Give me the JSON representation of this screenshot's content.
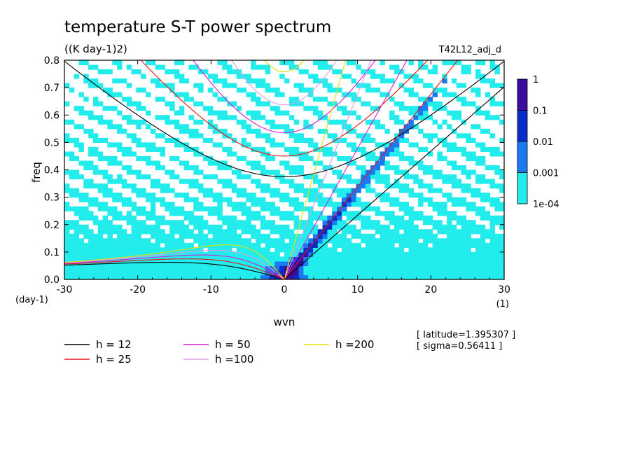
{
  "chart_data": {
    "type": "heatmap",
    "title": "temperature S-T power spectrum",
    "subtitle": "((K day-1)2)",
    "run_label": "T42L12_adj_d",
    "xlabel": "wvn",
    "ylabel": "freq",
    "x_unit": "(1)",
    "y_unit": "(day-1)",
    "xlim": [
      -30,
      30
    ],
    "ylim": [
      0,
      0.8
    ],
    "xticks": [
      -30,
      -20,
      -10,
      0,
      10,
      20,
      30
    ],
    "yticks": [
      0.0,
      0.1,
      0.2,
      0.3,
      0.4,
      0.5,
      0.6,
      0.7,
      0.8
    ],
    "xtick_labels": [
      "-30",
      "-20",
      "-10",
      "0",
      "10",
      "20",
      "30"
    ],
    "ytick_labels": [
      "0.0",
      "0.1",
      "0.2",
      "0.3",
      "0.4",
      "0.5",
      "0.6",
      "0.7",
      "0.8"
    ],
    "colorbar": {
      "levels": [
        0.0001,
        0.001,
        0.01,
        0.1,
        1
      ],
      "labels": [
        "1e-04",
        "0.001",
        "0.01",
        "0.1",
        "1"
      ],
      "colors": [
        "#22ECEC",
        "#1A78F0",
        "#0A2CC8",
        "#3A0CA0"
      ]
    },
    "legend": [
      {
        "label": "h = 12",
        "color": "#000000",
        "h": 12
      },
      {
        "label": "h = 25",
        "color": "#e81414",
        "h": 25
      },
      {
        "label": "h = 50",
        "color": "#d81ed8",
        "h": 50
      },
      {
        "label": "h =100",
        "color": "#e09ae6",
        "h": 100
      },
      {
        "label": "h =200",
        "color": "#e8e000",
        "h": 200
      }
    ],
    "annotations": [
      "[ latitude=1.395307 ]",
      "[ sigma=0.56411 ]"
    ]
  }
}
